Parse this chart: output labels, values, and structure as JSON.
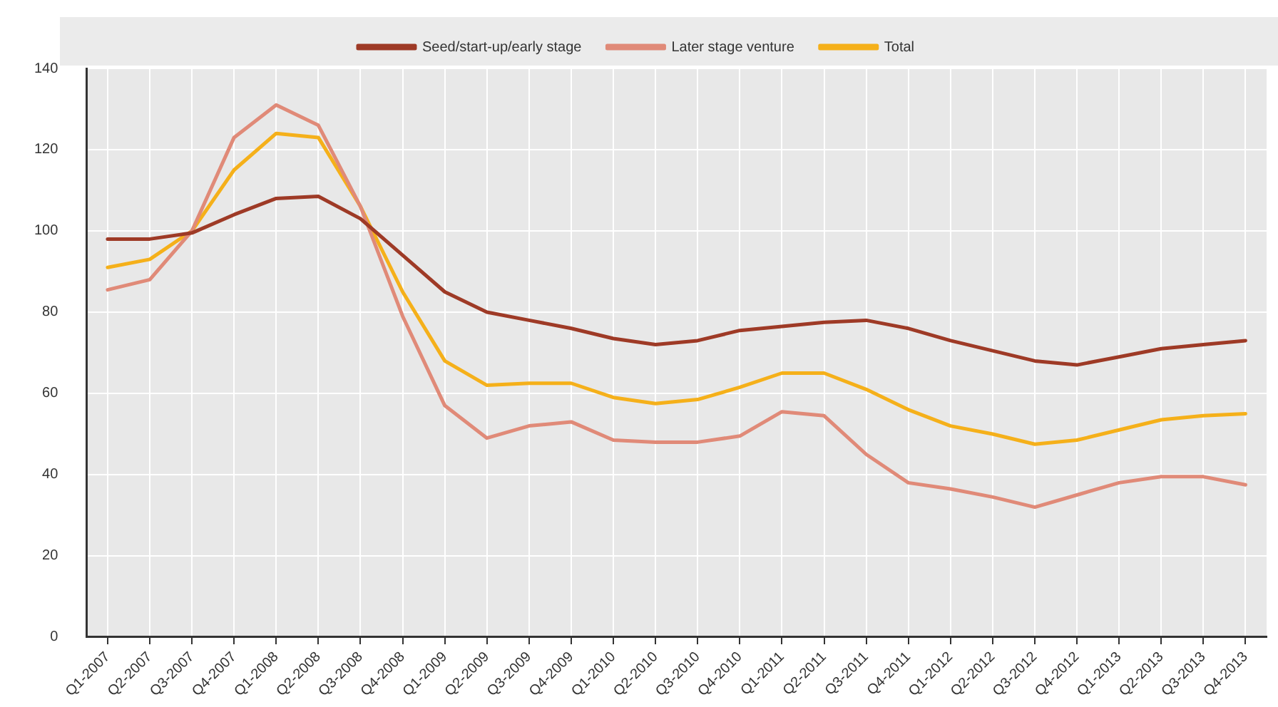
{
  "chart_data": {
    "type": "line",
    "categories": [
      "Q1-2007",
      "Q2-2007",
      "Q3-2007",
      "Q4-2007",
      "Q1-2008",
      "Q2-2008",
      "Q3-2008",
      "Q4-2008",
      "Q1-2009",
      "Q2-2009",
      "Q3-2009",
      "Q4-2009",
      "Q1-2010",
      "Q2-2010",
      "Q3-2010",
      "Q4-2010",
      "Q1-2011",
      "Q2-2011",
      "Q3-2011",
      "Q4-2011",
      "Q1-2012",
      "Q2-2012",
      "Q3-2012",
      "Q4-2012",
      "Q1-2013",
      "Q2-2013",
      "Q3-2013",
      "Q4-2013"
    ],
    "series": [
      {
        "name": "Seed/start-up/early stage",
        "color": "#9e3a26",
        "values": [
          98,
          98,
          99.5,
          104,
          108,
          108.5,
          103,
          94,
          85,
          80,
          78,
          76,
          73.5,
          72,
          73,
          75.5,
          76.5,
          77.5,
          78,
          76,
          73,
          70.5,
          68,
          67,
          69,
          71,
          72,
          73
        ]
      },
      {
        "name": "Later stage venture",
        "color": "#e08a78",
        "values": [
          85.5,
          88,
          100,
          123,
          131,
          126,
          106,
          79,
          57,
          49,
          52,
          53,
          48.5,
          48,
          48,
          49.5,
          55.5,
          54.5,
          45,
          38,
          36.5,
          34.5,
          32,
          35,
          38,
          39.5,
          39.5,
          37.5
        ]
      },
      {
        "name": "Total",
        "color": "#f5b01a",
        "values": [
          91,
          93,
          100,
          115,
          124,
          123,
          106,
          85,
          68,
          62,
          62.5,
          62.5,
          59,
          57.5,
          58.5,
          61.5,
          65,
          65,
          61,
          56,
          52,
          50,
          47.5,
          48.5,
          51,
          53.5,
          54.5,
          55
        ]
      }
    ],
    "ylim": [
      0,
      140
    ],
    "yticks": [
      0,
      20,
      40,
      60,
      80,
      100,
      120,
      140
    ],
    "grid": true,
    "legend": "top",
    "marker": "none",
    "line_style": "solid"
  }
}
